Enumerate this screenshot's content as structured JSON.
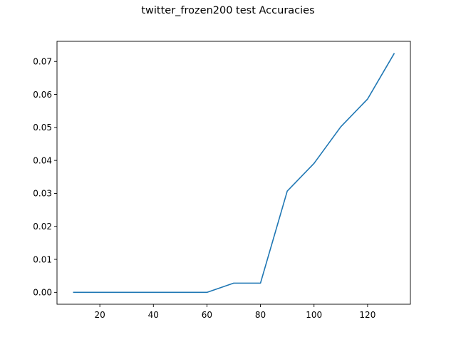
{
  "chart_data": {
    "type": "line",
    "title": "twitter_frozen200 test Accuracies",
    "xlabel": "",
    "ylabel": "",
    "x": [
      10,
      20,
      30,
      40,
      50,
      60,
      70,
      80,
      90,
      100,
      110,
      120,
      130
    ],
    "series": [
      {
        "values": [
          0.0,
          0.0,
          0.0,
          0.0,
          0.0,
          0.0,
          0.0028,
          0.0028,
          0.0307,
          0.0391,
          0.0502,
          0.0586,
          0.0725
        ],
        "color": "#1f77b4"
      }
    ],
    "xlim": [
      4,
      136
    ],
    "ylim": [
      -0.0036,
      0.0761
    ],
    "xticks": [
      20,
      40,
      60,
      80,
      100,
      120
    ],
    "xtick_labels": [
      "20",
      "40",
      "60",
      "80",
      "100",
      "120"
    ],
    "yticks": [
      0.0,
      0.01,
      0.02,
      0.03,
      0.04,
      0.05,
      0.06,
      0.07
    ],
    "ytick_labels": [
      "0.00",
      "0.01",
      "0.02",
      "0.03",
      "0.04",
      "0.05",
      "0.06",
      "0.07"
    ],
    "grid": false,
    "legend": "none"
  }
}
